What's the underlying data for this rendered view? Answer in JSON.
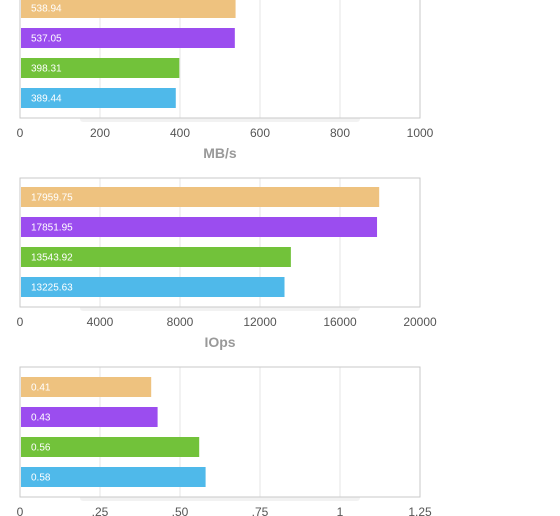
{
  "chart_data": [
    {
      "type": "bar",
      "orientation": "horizontal",
      "values": [
        538.94,
        537.05,
        398.31,
        389.44
      ],
      "value_labels": [
        "538.94",
        "537.05",
        "398.31",
        "389.44"
      ],
      "xlim": [
        0,
        1000
      ],
      "ticks": [
        0,
        200,
        400,
        600,
        800,
        1000
      ],
      "tick_labels": [
        "0",
        "200",
        "400",
        "600",
        "800",
        "1000"
      ],
      "xlabel": "MB/s",
      "grid": true
    },
    {
      "type": "bar",
      "orientation": "horizontal",
      "values": [
        17959.75,
        17851.95,
        13543.92,
        13225.63
      ],
      "value_labels": [
        "17959.75",
        "17851.95",
        "13543.92",
        "13225.63"
      ],
      "xlim": [
        0,
        20000
      ],
      "ticks": [
        0,
        4000,
        8000,
        12000,
        16000,
        20000
      ],
      "tick_labels": [
        "0",
        "4000",
        "8000",
        "12000",
        "16000",
        "20000"
      ],
      "xlabel": "IOps",
      "grid": true
    },
    {
      "type": "bar",
      "orientation": "horizontal",
      "values": [
        0.41,
        0.43,
        0.56,
        0.58
      ],
      "value_labels": [
        "0.41",
        "0.43",
        "0.56",
        "0.58"
      ],
      "xlim": [
        0,
        1.25
      ],
      "ticks": [
        0,
        0.25,
        0.5,
        0.75,
        1,
        1.25
      ],
      "tick_labels": [
        "0",
        ".25",
        ".50",
        ".75",
        "1",
        "1.25"
      ],
      "xlabel": "",
      "grid": true
    }
  ],
  "colors": [
    "#EEC27F",
    "#9B4DEF",
    "#72C23A",
    "#4FB9EA"
  ]
}
